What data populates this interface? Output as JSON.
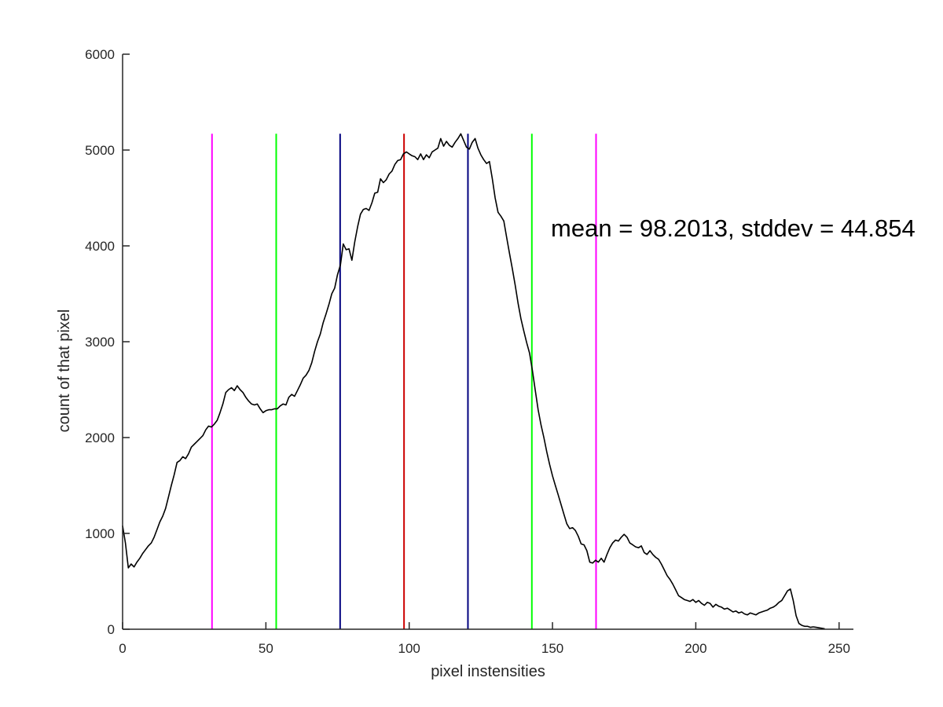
{
  "chart_data": {
    "type": "line",
    "title": "",
    "xlabel": "pixel instensities",
    "ylabel": "count of that pixel",
    "xlim": [
      0,
      255
    ],
    "ylim": [
      0,
      6000
    ],
    "grid": false,
    "x_ticks": [
      0,
      50,
      100,
      150,
      200,
      250
    ],
    "y_ticks": [
      0,
      1000,
      2000,
      3000,
      4000,
      5000,
      6000
    ],
    "annotation": {
      "text": "mean = 98.2013, stddev = 44.854",
      "x": 150,
      "y": 4100
    },
    "series": [
      {
        "color": "#000000",
        "points": [
          [
            0,
            1080
          ],
          [
            1,
            900
          ],
          [
            2,
            640
          ],
          [
            3,
            680
          ],
          [
            4,
            650
          ],
          [
            5,
            700
          ],
          [
            6,
            740
          ],
          [
            7,
            790
          ],
          [
            8,
            830
          ],
          [
            9,
            870
          ],
          [
            10,
            900
          ],
          [
            11,
            960
          ],
          [
            12,
            1040
          ],
          [
            13,
            1120
          ],
          [
            14,
            1180
          ],
          [
            15,
            1260
          ],
          [
            16,
            1380
          ],
          [
            17,
            1500
          ],
          [
            18,
            1610
          ],
          [
            19,
            1740
          ],
          [
            20,
            1760
          ],
          [
            21,
            1800
          ],
          [
            22,
            1780
          ],
          [
            23,
            1830
          ],
          [
            24,
            1900
          ],
          [
            25,
            1930
          ],
          [
            26,
            1960
          ],
          [
            27,
            1990
          ],
          [
            28,
            2020
          ],
          [
            29,
            2080
          ],
          [
            30,
            2120
          ],
          [
            31,
            2110
          ],
          [
            32,
            2140
          ],
          [
            33,
            2180
          ],
          [
            34,
            2260
          ],
          [
            35,
            2350
          ],
          [
            36,
            2470
          ],
          [
            37,
            2500
          ],
          [
            38,
            2520
          ],
          [
            39,
            2490
          ],
          [
            40,
            2540
          ],
          [
            41,
            2500
          ],
          [
            42,
            2470
          ],
          [
            43,
            2420
          ],
          [
            44,
            2380
          ],
          [
            45,
            2350
          ],
          [
            46,
            2340
          ],
          [
            47,
            2350
          ],
          [
            48,
            2300
          ],
          [
            49,
            2260
          ],
          [
            50,
            2280
          ],
          [
            51,
            2290
          ],
          [
            52,
            2290
          ],
          [
            53,
            2300
          ],
          [
            54,
            2300
          ],
          [
            55,
            2330
          ],
          [
            56,
            2350
          ],
          [
            57,
            2340
          ],
          [
            58,
            2420
          ],
          [
            59,
            2450
          ],
          [
            60,
            2430
          ],
          [
            61,
            2490
          ],
          [
            62,
            2550
          ],
          [
            63,
            2620
          ],
          [
            64,
            2650
          ],
          [
            65,
            2700
          ],
          [
            66,
            2780
          ],
          [
            67,
            2900
          ],
          [
            68,
            3000
          ],
          [
            69,
            3080
          ],
          [
            70,
            3200
          ],
          [
            71,
            3290
          ],
          [
            72,
            3390
          ],
          [
            73,
            3500
          ],
          [
            74,
            3560
          ],
          [
            75,
            3700
          ],
          [
            76,
            3800
          ],
          [
            77,
            4020
          ],
          [
            78,
            3960
          ],
          [
            79,
            3970
          ],
          [
            80,
            3850
          ],
          [
            81,
            4040
          ],
          [
            82,
            4200
          ],
          [
            83,
            4330
          ],
          [
            84,
            4380
          ],
          [
            85,
            4390
          ],
          [
            86,
            4370
          ],
          [
            87,
            4450
          ],
          [
            88,
            4550
          ],
          [
            89,
            4560
          ],
          [
            90,
            4700
          ],
          [
            91,
            4660
          ],
          [
            92,
            4690
          ],
          [
            93,
            4750
          ],
          [
            94,
            4780
          ],
          [
            95,
            4850
          ],
          [
            96,
            4890
          ],
          [
            97,
            4900
          ],
          [
            98,
            4960
          ],
          [
            99,
            4980
          ],
          [
            100,
            4960
          ],
          [
            101,
            4940
          ],
          [
            102,
            4930
          ],
          [
            103,
            4900
          ],
          [
            104,
            4960
          ],
          [
            105,
            4900
          ],
          [
            106,
            4950
          ],
          [
            107,
            4920
          ],
          [
            108,
            4980
          ],
          [
            109,
            5000
          ],
          [
            110,
            5020
          ],
          [
            111,
            5120
          ],
          [
            112,
            5040
          ],
          [
            113,
            5090
          ],
          [
            114,
            5050
          ],
          [
            115,
            5030
          ],
          [
            116,
            5080
          ],
          [
            117,
            5120
          ],
          [
            118,
            5170
          ],
          [
            119,
            5100
          ],
          [
            120,
            5030
          ],
          [
            121,
            5010
          ],
          [
            122,
            5080
          ],
          [
            123,
            5120
          ],
          [
            124,
            5020
          ],
          [
            125,
            4950
          ],
          [
            126,
            4900
          ],
          [
            127,
            4860
          ],
          [
            128,
            4880
          ],
          [
            129,
            4700
          ],
          [
            130,
            4500
          ],
          [
            131,
            4350
          ],
          [
            132,
            4310
          ],
          [
            133,
            4260
          ],
          [
            134,
            4090
          ],
          [
            135,
            3920
          ],
          [
            136,
            3760
          ],
          [
            137,
            3590
          ],
          [
            138,
            3400
          ],
          [
            139,
            3240
          ],
          [
            140,
            3110
          ],
          [
            141,
            2990
          ],
          [
            142,
            2880
          ],
          [
            143,
            2700
          ],
          [
            144,
            2490
          ],
          [
            145,
            2290
          ],
          [
            146,
            2130
          ],
          [
            147,
            2000
          ],
          [
            148,
            1850
          ],
          [
            149,
            1720
          ],
          [
            150,
            1600
          ],
          [
            151,
            1500
          ],
          [
            152,
            1400
          ],
          [
            153,
            1300
          ],
          [
            154,
            1200
          ],
          [
            155,
            1100
          ],
          [
            156,
            1050
          ],
          [
            157,
            1060
          ],
          [
            158,
            1030
          ],
          [
            159,
            970
          ],
          [
            160,
            890
          ],
          [
            161,
            880
          ],
          [
            162,
            820
          ],
          [
            163,
            700
          ],
          [
            164,
            690
          ],
          [
            165,
            720
          ],
          [
            166,
            700
          ],
          [
            167,
            740
          ],
          [
            168,
            700
          ],
          [
            169,
            780
          ],
          [
            170,
            850
          ],
          [
            171,
            900
          ],
          [
            172,
            930
          ],
          [
            173,
            920
          ],
          [
            174,
            960
          ],
          [
            175,
            990
          ],
          [
            176,
            960
          ],
          [
            177,
            900
          ],
          [
            178,
            880
          ],
          [
            179,
            860
          ],
          [
            180,
            850
          ],
          [
            181,
            870
          ],
          [
            182,
            800
          ],
          [
            183,
            780
          ],
          [
            184,
            820
          ],
          [
            185,
            780
          ],
          [
            186,
            750
          ],
          [
            187,
            730
          ],
          [
            188,
            680
          ],
          [
            189,
            620
          ],
          [
            190,
            560
          ],
          [
            191,
            520
          ],
          [
            192,
            470
          ],
          [
            193,
            410
          ],
          [
            194,
            350
          ],
          [
            195,
            330
          ],
          [
            196,
            310
          ],
          [
            197,
            300
          ],
          [
            198,
            290
          ],
          [
            199,
            310
          ],
          [
            200,
            280
          ],
          [
            201,
            300
          ],
          [
            202,
            270
          ],
          [
            203,
            250
          ],
          [
            204,
            280
          ],
          [
            205,
            270
          ],
          [
            206,
            230
          ],
          [
            207,
            260
          ],
          [
            208,
            240
          ],
          [
            209,
            230
          ],
          [
            210,
            210
          ],
          [
            211,
            220
          ],
          [
            212,
            200
          ],
          [
            213,
            180
          ],
          [
            214,
            190
          ],
          [
            215,
            170
          ],
          [
            216,
            180
          ],
          [
            217,
            160
          ],
          [
            218,
            150
          ],
          [
            219,
            170
          ],
          [
            220,
            160
          ],
          [
            221,
            150
          ],
          [
            222,
            170
          ],
          [
            223,
            180
          ],
          [
            224,
            190
          ],
          [
            225,
            200
          ],
          [
            226,
            220
          ],
          [
            227,
            230
          ],
          [
            228,
            250
          ],
          [
            229,
            280
          ],
          [
            230,
            300
          ],
          [
            231,
            350
          ],
          [
            232,
            400
          ],
          [
            233,
            420
          ],
          [
            234,
            300
          ],
          [
            235,
            140
          ],
          [
            236,
            60
          ],
          [
            237,
            40
          ],
          [
            238,
            30
          ],
          [
            239,
            30
          ],
          [
            240,
            20
          ],
          [
            241,
            25
          ],
          [
            242,
            20
          ],
          [
            243,
            15
          ],
          [
            244,
            10
          ],
          [
            245,
            5
          ]
        ]
      }
    ],
    "vertical_lines": [
      {
        "x": 31.2,
        "color": "#ff00ff"
      },
      {
        "x": 53.6,
        "color": "#00ff00"
      },
      {
        "x": 75.9,
        "color": "#00007f"
      },
      {
        "x": 98.2,
        "color": "#cc0000"
      },
      {
        "x": 120.5,
        "color": "#00007f"
      },
      {
        "x": 142.8,
        "color": "#00ff00"
      },
      {
        "x": 165.2,
        "color": "#ff00ff"
      }
    ],
    "vertical_line_top": 5170
  }
}
